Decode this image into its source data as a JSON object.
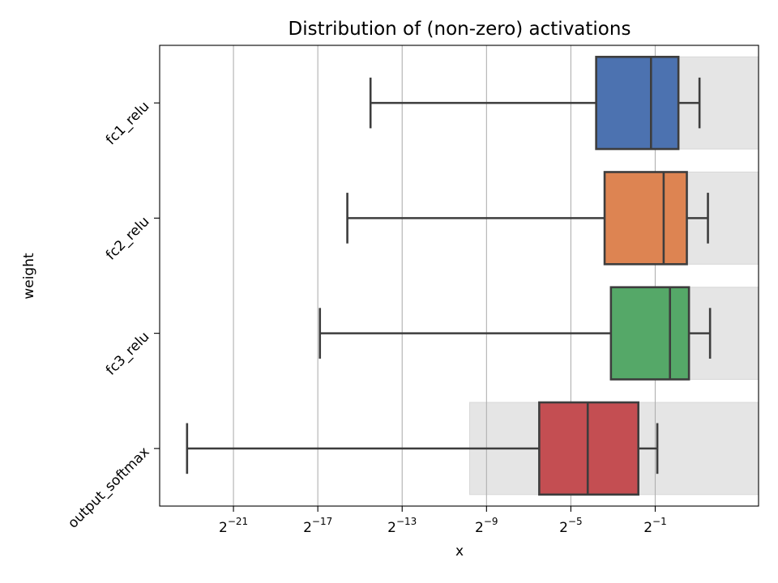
{
  "chart_data": {
    "type": "boxplot",
    "orientation": "horizontal",
    "title": "Distribution of (non-zero) activations",
    "xlabel": "x",
    "ylabel": "weight",
    "x_scale": "log2",
    "x_ticks": [
      {
        "exp": -21,
        "base": "2",
        "sup": "−21"
      },
      {
        "exp": -17,
        "base": "2",
        "sup": "−17"
      },
      {
        "exp": -13,
        "base": "2",
        "sup": "−13"
      },
      {
        "exp": -9,
        "base": "2",
        "sup": "−9"
      },
      {
        "exp": -5,
        "base": "2",
        "sup": "−5"
      },
      {
        "exp": -1,
        "base": "2",
        "sup": "−1"
      }
    ],
    "xlim_log2": [
      -24.5,
      3.9
    ],
    "grid": "vertical",
    "series": [
      {
        "name": "fc1_relu",
        "color": "#4c72b0",
        "min_log2": -14.5,
        "q1_log2": -3.8,
        "median_log2": -1.2,
        "q3_log2": 0.1,
        "max_log2": 1.1,
        "range_log2": [
          -1.9,
          3.9
        ]
      },
      {
        "name": "fc2_relu",
        "color": "#dd8452",
        "min_log2": -15.6,
        "q1_log2": -3.4,
        "median_log2": -0.6,
        "q3_log2": 0.5,
        "max_log2": 1.5,
        "range_log2": [
          -1.9,
          3.9
        ]
      },
      {
        "name": "fc3_relu",
        "color": "#55a868",
        "min_log2": -16.9,
        "q1_log2": -3.1,
        "median_log2": -0.3,
        "q3_log2": 0.6,
        "max_log2": 1.6,
        "range_log2": [
          -1.9,
          3.9
        ]
      },
      {
        "name": "output_softmax",
        "color": "#c44e52",
        "min_log2": -23.2,
        "q1_log2": -6.5,
        "median_log2": -4.2,
        "q3_log2": -1.8,
        "max_log2": -0.9,
        "range_log2": [
          -9.8,
          3.9
        ]
      }
    ]
  }
}
